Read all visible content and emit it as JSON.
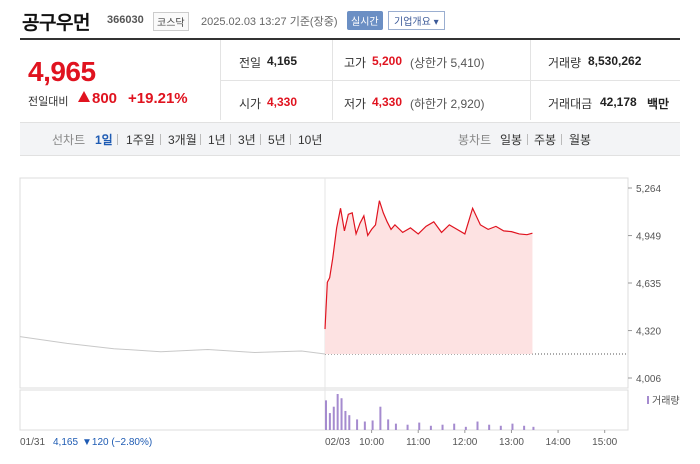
{
  "header": {
    "name": "공구우먼",
    "code": "366030",
    "market": "코스닥",
    "datetime": "2025.02.03 13:27 기준(장중)",
    "realtime_label": "실시간",
    "company_info_label": "기업개요"
  },
  "summary": {
    "price": "4,965",
    "change_label": "전일대비",
    "change_value": "800",
    "change_pct": "+19.21%",
    "prev_label": "전일",
    "prev_value": "4,165",
    "high_label": "고가",
    "high_value": "5,200",
    "upper_limit": "(상한가 5,410)",
    "volume_label": "거래량",
    "volume_value": "8,530,262",
    "open_label": "시가",
    "open_value": "4,330",
    "low_label": "저가",
    "low_value": "4,330",
    "lower_limit": "(하한가 2,920)",
    "amount_label": "거래대금",
    "amount_value": "42,178",
    "amount_unit": "백만"
  },
  "tabs": {
    "line_label": "선차트",
    "periods": [
      "1일",
      "1주일",
      "3개월",
      "1년",
      "3년",
      "5년",
      "10년"
    ],
    "active": "1일",
    "candle_label": "봉차트",
    "candles": [
      "일봉",
      "주봉",
      "월봉"
    ]
  },
  "colors": {
    "up": "#e0131f",
    "down": "#1e5bb3",
    "prev_line": "#c8c8c8",
    "area": "#fde2e2",
    "volume": "#a58bcf"
  },
  "chart_data": {
    "type": "line",
    "y_ticks": [
      "5,264",
      "4,949",
      "4,635",
      "4,320",
      "4,006"
    ],
    "ylim": [
      4006,
      5264
    ],
    "x_ticks": [
      "01/31",
      "02/03",
      "10:00",
      "11:00",
      "12:00",
      "13:00",
      "14:00",
      "15:00"
    ],
    "prev_close": 4165,
    "prev_day_caption": "4,165",
    "prev_day_change": "120 (−2.80%)",
    "volume_label": "거래량",
    "series": [
      {
        "x": [
          "01/31 09:00",
          "01/31 10:00",
          "01/31 11:00",
          "01/31 12:00",
          "01/31 13:00",
          "01/31 14:00",
          "01/31 15:00",
          "01/31 15:30"
        ],
        "values": [
          4280,
          4235,
          4200,
          4180,
          4195,
          4175,
          4185,
          4165
        ]
      },
      {
        "x": [
          "09:00",
          "09:03",
          "09:06",
          "09:10",
          "09:15",
          "09:20",
          "09:25",
          "09:30",
          "09:35",
          "09:40",
          "09:45",
          "09:50",
          "09:55",
          "10:00",
          "10:05",
          "10:10",
          "10:15",
          "10:20",
          "10:25",
          "10:30",
          "10:40",
          "10:50",
          "11:00",
          "11:10",
          "11:20",
          "11:30",
          "11:40",
          "11:50",
          "12:00",
          "12:10",
          "12:20",
          "12:30",
          "12:40",
          "12:50",
          "13:00",
          "13:10",
          "13:20",
          "13:27"
        ],
        "values": [
          4330,
          4640,
          4670,
          4800,
          5000,
          5130,
          4980,
          5090,
          5100,
          4960,
          5030,
          5080,
          4950,
          4990,
          5020,
          5180,
          5100,
          5040,
          4990,
          5020,
          4970,
          5000,
          4960,
          5010,
          5040,
          4970,
          5020,
          4990,
          4960,
          5130,
          5020,
          4990,
          5010,
          4980,
          4975,
          4960,
          4955,
          4965
        ]
      }
    ],
    "volume": {
      "x": [
        "09:00",
        "09:05",
        "09:10",
        "09:15",
        "09:20",
        "09:25",
        "09:30",
        "09:40",
        "09:50",
        "10:00",
        "10:10",
        "10:20",
        "10:30",
        "10:45",
        "11:00",
        "11:15",
        "11:30",
        "11:45",
        "12:00",
        "12:15",
        "12:30",
        "12:45",
        "13:00",
        "13:15",
        "13:27"
      ],
      "values": [
        28,
        16,
        22,
        34,
        30,
        18,
        14,
        10,
        8,
        9,
        22,
        10,
        6,
        5,
        7,
        4,
        5,
        6,
        3,
        8,
        5,
        4,
        6,
        4,
        3
      ]
    }
  }
}
